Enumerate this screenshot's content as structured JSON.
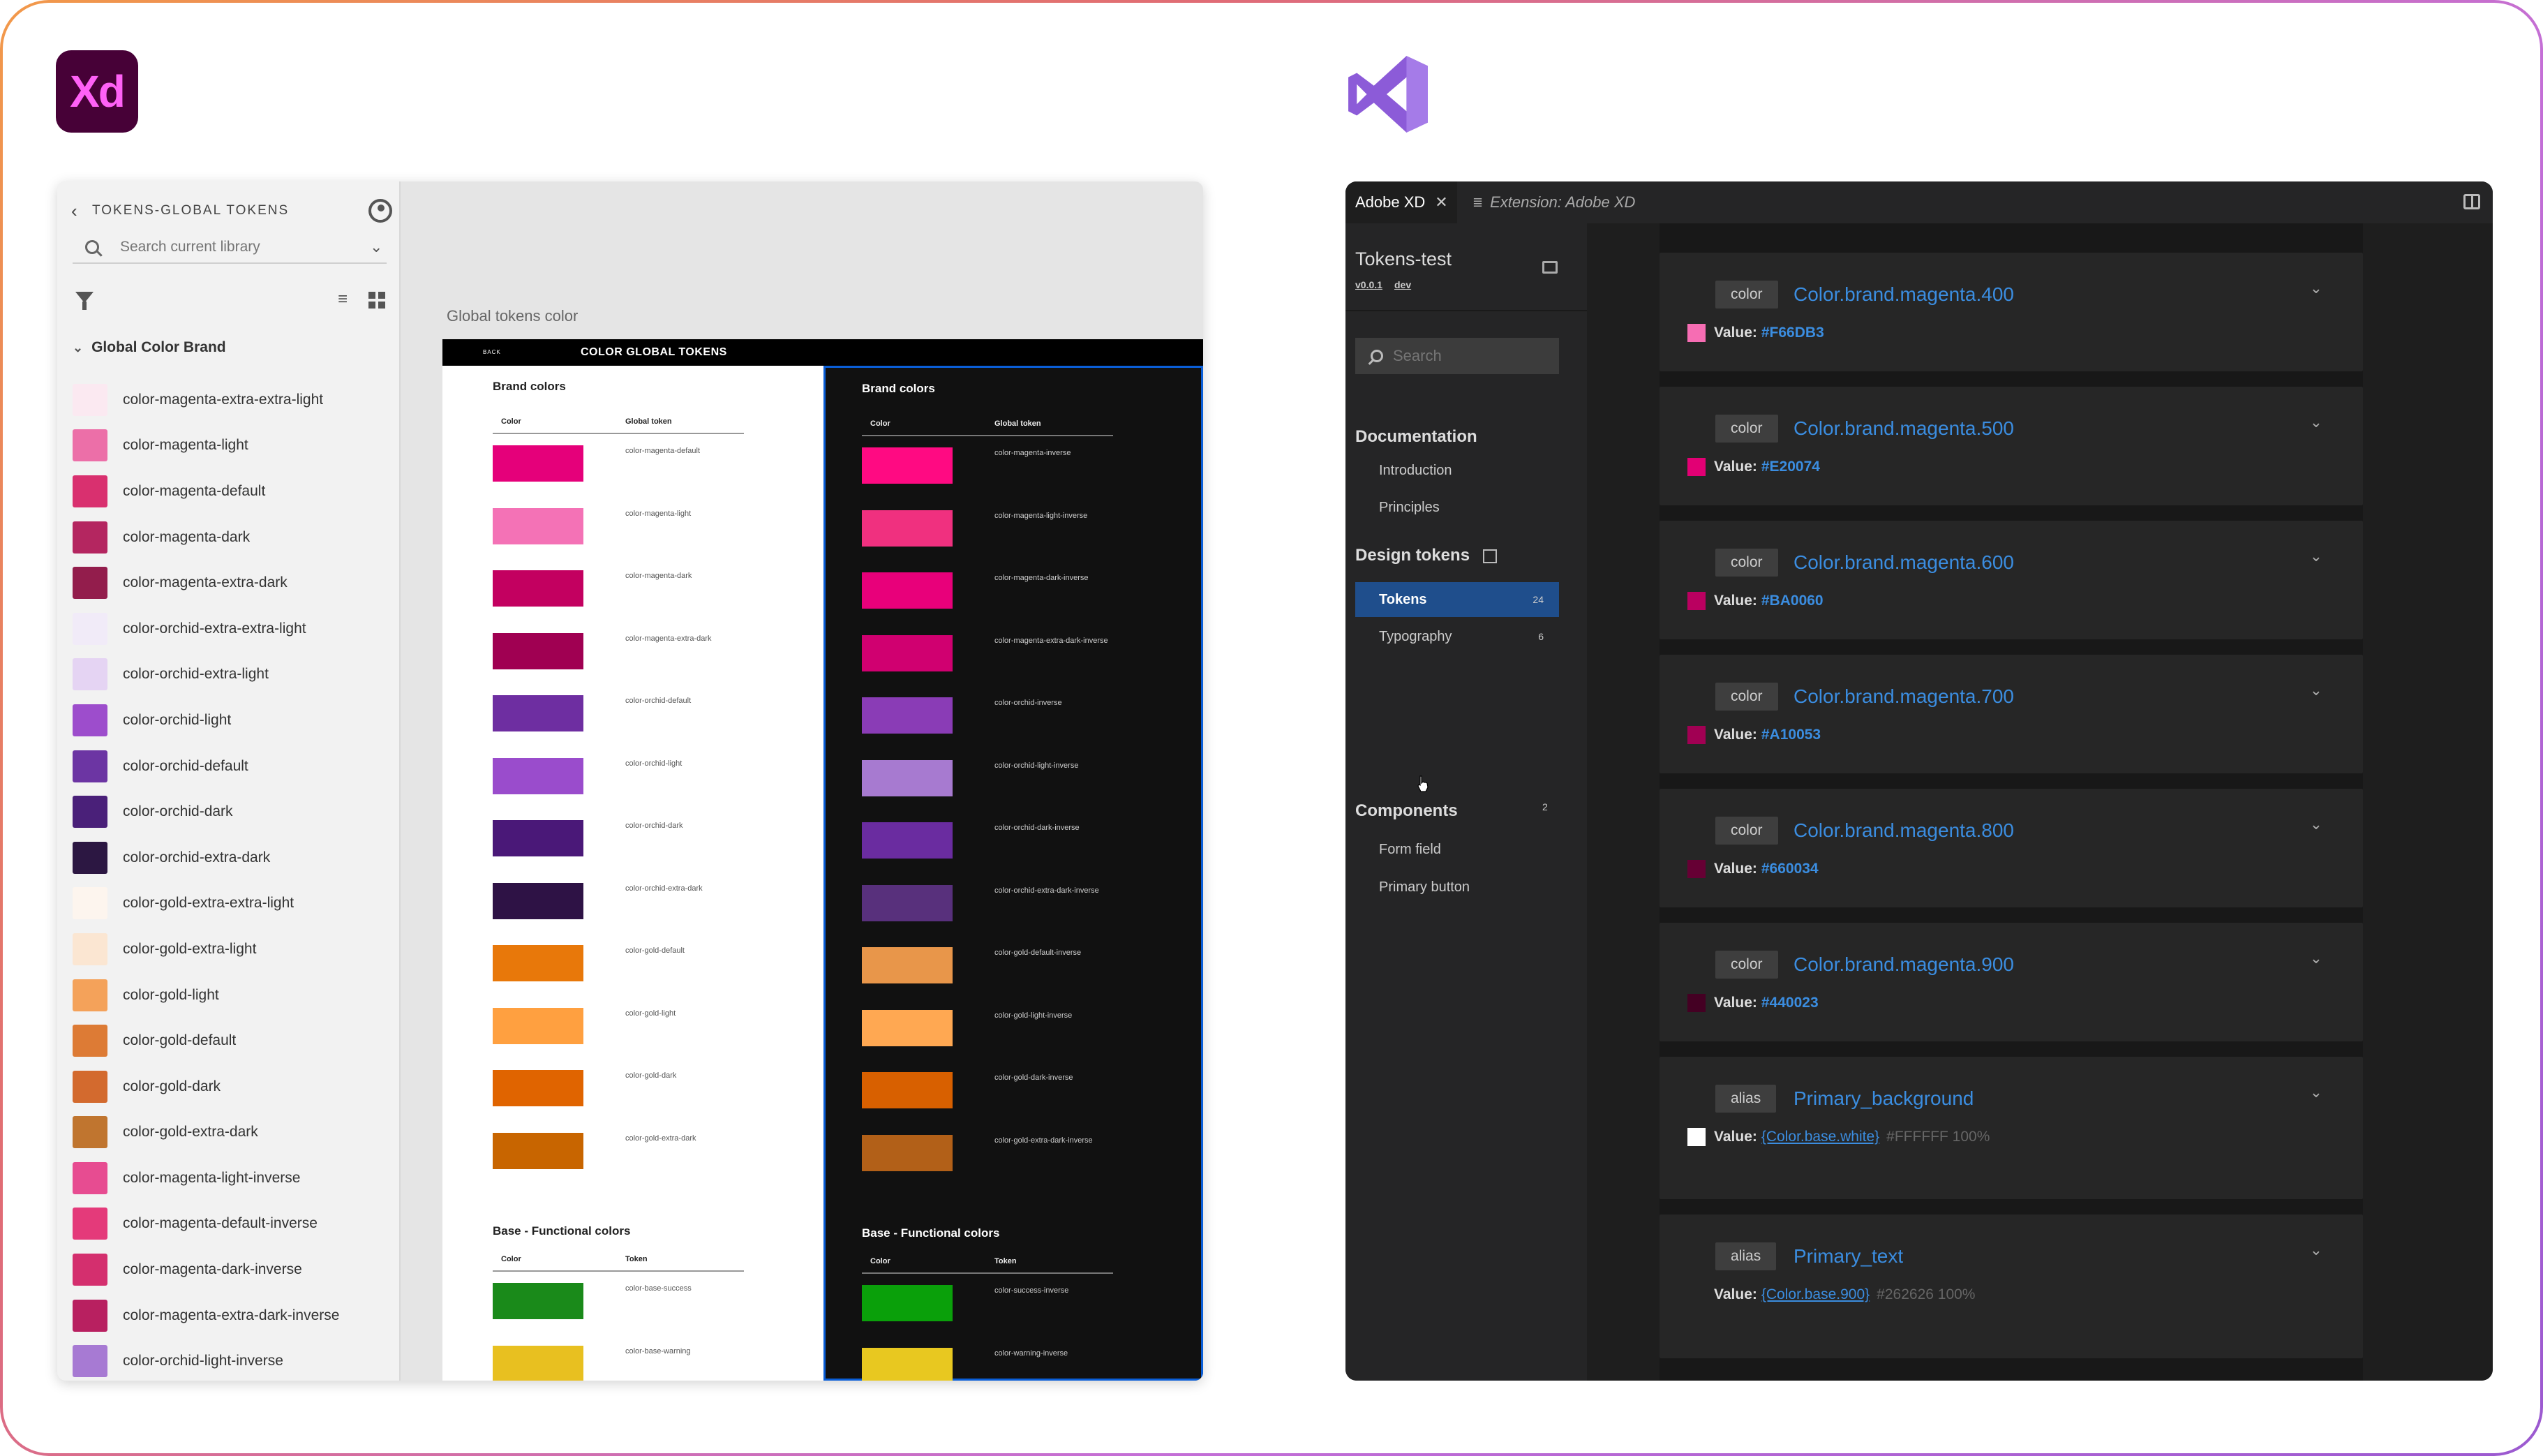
{
  "apps": {
    "left_logo": {
      "name": "xd-logo",
      "text": "Xd"
    },
    "right_logo": {
      "name": "visual-studio-logo"
    }
  },
  "xd": {
    "panel": {
      "title": "TOKENS-GLOBAL TOKENS",
      "search_placeholder": "Search current library",
      "group": "Global Color Brand",
      "items": [
        {
          "label": "color-magenta-extra-extra-light",
          "color": "#fbe9f1"
        },
        {
          "label": "color-magenta-light",
          "color": "#ec6fa8"
        },
        {
          "label": "color-magenta-default",
          "color": "#d9306f"
        },
        {
          "label": "color-magenta-dark",
          "color": "#b42660"
        },
        {
          "label": "color-magenta-extra-dark",
          "color": "#931d4c"
        },
        {
          "label": "color-orchid-extra-extra-light",
          "color": "#f1ebf8"
        },
        {
          "label": "color-orchid-extra-light",
          "color": "#e5d4f3"
        },
        {
          "label": "color-orchid-light",
          "color": "#9d4dcc"
        },
        {
          "label": "color-orchid-default",
          "color": "#6c35a3"
        },
        {
          "label": "color-orchid-dark",
          "color": "#4a2079"
        },
        {
          "label": "color-orchid-extra-dark",
          "color": "#2c1742"
        },
        {
          "label": "color-gold-extra-extra-light",
          "color": "#fdf5ee"
        },
        {
          "label": "color-gold-extra-light",
          "color": "#fbe6d2"
        },
        {
          "label": "color-gold-light",
          "color": "#f4a25a"
        },
        {
          "label": "color-gold-default",
          "color": "#dd7b35"
        },
        {
          "label": "color-gold-dark",
          "color": "#d36a2e"
        },
        {
          "label": "color-gold-extra-dark",
          "color": "#c0752f"
        },
        {
          "label": "color-magenta-light-inverse",
          "color": "#e74c91"
        },
        {
          "label": "color-magenta-default-inverse",
          "color": "#e43a7a"
        },
        {
          "label": "color-magenta-dark-inverse",
          "color": "#d42f6e"
        },
        {
          "label": "color-magenta-extra-dark-inverse",
          "color": "#b82060"
        },
        {
          "label": "color-orchid-light-inverse",
          "color": "#a77ad3"
        }
      ]
    },
    "canvas": {
      "label": "Global tokens color",
      "artboard": {
        "back": "BACK",
        "heading": "COLOR GLOBAL TOKENS",
        "light": {
          "section1": "Brand colors",
          "col1": "Color",
          "col2": "Global token",
          "rows": [
            {
              "token": "color-magenta-default",
              "color": "#e5007a"
            },
            {
              "token": "color-magenta-light",
              "color": "#f472b6"
            },
            {
              "token": "color-magenta-dark",
              "color": "#c30060"
            },
            {
              "token": "color-magenta-extra-dark",
              "color": "#a00052"
            },
            {
              "token": "color-orchid-default",
              "color": "#6e2ea1"
            },
            {
              "token": "color-orchid-light",
              "color": "#9a4ccc"
            },
            {
              "token": "color-orchid-dark",
              "color": "#4a1878"
            },
            {
              "token": "color-orchid-extra-dark",
              "color": "#2e1245"
            },
            {
              "token": "color-gold-default",
              "color": "#e8780a"
            },
            {
              "token": "color-gold-light",
              "color": "#ffa040"
            },
            {
              "token": "color-gold-dark",
              "color": "#e06400"
            },
            {
              "token": "color-gold-extra-dark",
              "color": "#c86500"
            }
          ],
          "section2": "Base - Functional colors",
          "col1b": "Color",
          "col2b": "Token",
          "rows2": [
            {
              "token": "color-base-success",
              "color": "#1a8a1a"
            },
            {
              "token": "color-base-warning",
              "color": "#e8c020"
            }
          ]
        },
        "dark": {
          "section1": "Brand colors",
          "col1": "Color",
          "col2": "Global token",
          "rows": [
            {
              "token": "color-magenta-inverse",
              "color": "#ff0a82"
            },
            {
              "token": "color-magenta-light-inverse",
              "color": "#f0307f"
            },
            {
              "token": "color-magenta-dark-inverse",
              "color": "#e8007a"
            },
            {
              "token": "color-magenta-extra-dark-inverse",
              "color": "#d00070"
            },
            {
              "token": "color-orchid-inverse",
              "color": "#8a3cb6"
            },
            {
              "token": "color-orchid-light-inverse",
              "color": "#a77ad0"
            },
            {
              "token": "color-orchid-dark-inverse",
              "color": "#6a2ca0"
            },
            {
              "token": "color-orchid-extra-dark-inverse",
              "color": "#58307c"
            },
            {
              "token": "color-gold-default-inverse",
              "color": "#e8964a"
            },
            {
              "token": "color-gold-light-inverse",
              "color": "#ffa852"
            },
            {
              "token": "color-gold-dark-inverse",
              "color": "#d86000"
            },
            {
              "token": "color-gold-extra-dark-inverse",
              "color": "#b26018"
            }
          ],
          "section2": "Base - Functional colors",
          "col1b": "Color",
          "col2b": "Token",
          "rows2": [
            {
              "token": "color-success-inverse",
              "color": "#0aa00a"
            },
            {
              "token": "color-warning-inverse",
              "color": "#e8c820"
            }
          ]
        }
      }
    }
  },
  "vs": {
    "tabs": [
      {
        "label": "Adobe XD"
      },
      {
        "label": "Extension: Adobe XD"
      }
    ],
    "project": {
      "name": "Tokens-test",
      "version": "v0.0.1",
      "branch": "dev"
    },
    "search_placeholder": "Search",
    "nav": {
      "documentation": "Documentation",
      "introduction": "Introduction",
      "principles": "Principles",
      "design_tokens": "Design tokens",
      "tokens": "Tokens",
      "tokens_count": "24",
      "typography": "Typography",
      "typography_count": "6",
      "components": "Components",
      "components_count": "2",
      "form_field": "Form field",
      "primary_button": "Primary button"
    },
    "cards": [
      {
        "type": "color",
        "name": "Color.brand.magenta.400",
        "value_label": "Value:",
        "value": "#F66DB3",
        "swatch": "#f66db3"
      },
      {
        "type": "color",
        "name": "Color.brand.magenta.500",
        "value_label": "Value:",
        "value": "#E20074",
        "swatch": "#e20074"
      },
      {
        "type": "color",
        "name": "Color.brand.magenta.600",
        "value_label": "Value:",
        "value": "#BA0060",
        "swatch": "#ba0060"
      },
      {
        "type": "color",
        "name": "Color.brand.magenta.700",
        "value_label": "Value:",
        "value": "#A10053",
        "swatch": "#a10053"
      },
      {
        "type": "color",
        "name": "Color.brand.magenta.800",
        "value_label": "Value:",
        "value": "#660034",
        "swatch": "#660034"
      },
      {
        "type": "color",
        "name": "Color.brand.magenta.900",
        "value_label": "Value:",
        "value": "#440023",
        "swatch": "#440023"
      },
      {
        "type": "alias",
        "name": "Primary_background",
        "value_label": "Value:",
        "ref": "{Color.base.white}",
        "extra": "#FFFFFF 100%",
        "swatch": "#ffffff"
      },
      {
        "type": "alias",
        "name": "Primary_text",
        "value_label": "Value:",
        "ref": "{Color.base.900}",
        "extra": "#262626 100%",
        "swatch": "#262626"
      }
    ]
  }
}
